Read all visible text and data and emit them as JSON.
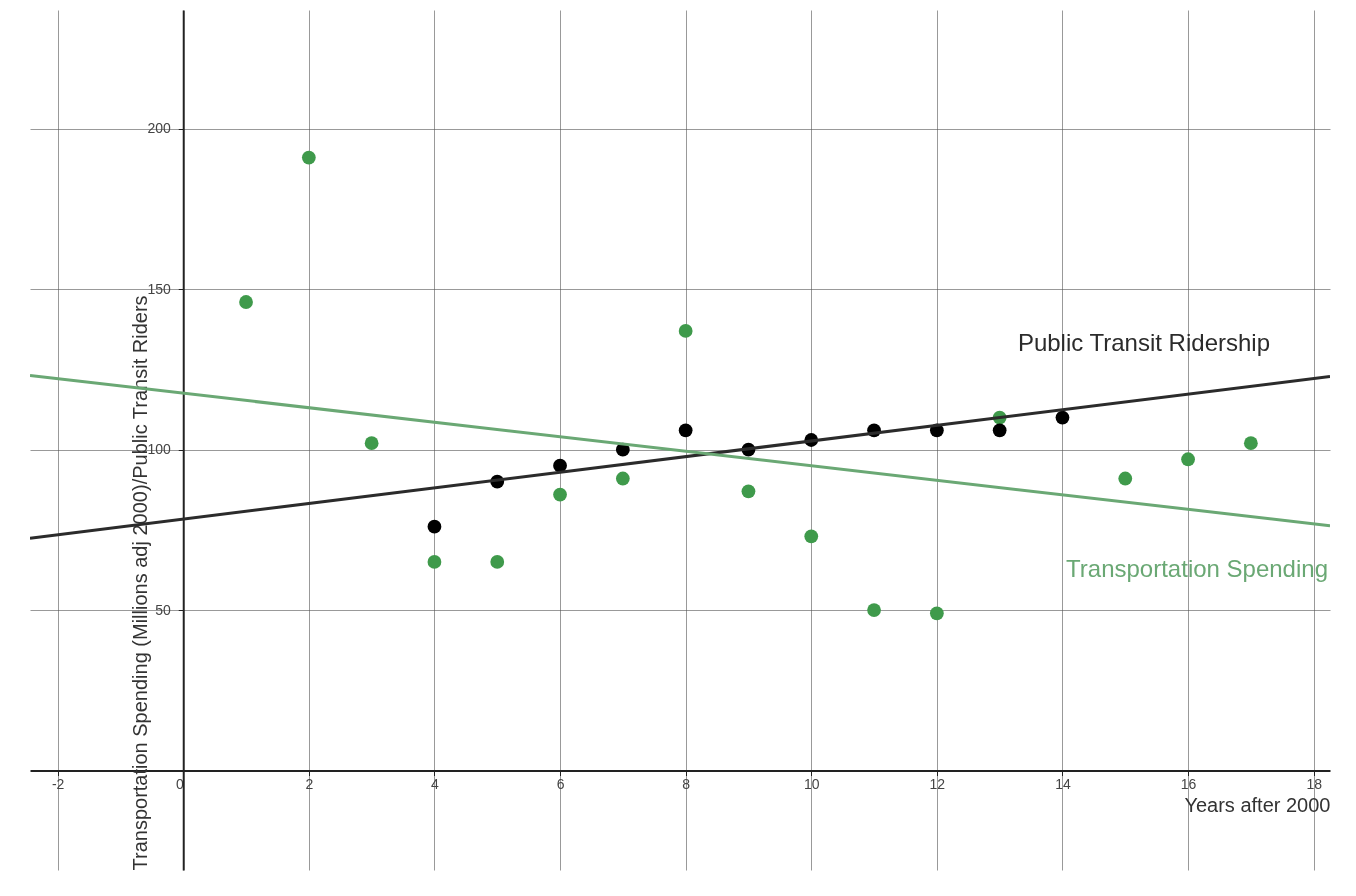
{
  "chart_data": {
    "type": "scatter",
    "xlabel": "Years after 2000",
    "ylabel": "Transportation Spending (Millions adj 2000)/Public Transit Riders",
    "xlim": [
      -2.44,
      18.26
    ],
    "ylim": [
      -31,
      237
    ],
    "xticks": [
      -2,
      0,
      2,
      4,
      6,
      8,
      10,
      12,
      14,
      16,
      18
    ],
    "yticks": [
      50,
      100,
      150,
      200
    ],
    "grid": true,
    "series": [
      {
        "marker": "circle",
        "color": "#3f9a4b",
        "x": [
          1,
          2,
          3,
          4,
          5,
          6,
          7,
          8,
          9,
          10,
          11,
          12,
          13,
          15,
          16,
          17
        ],
        "values": [
          146,
          191,
          102,
          65,
          65,
          86,
          91,
          137,
          87,
          73,
          50,
          49,
          110,
          91,
          97,
          102
        ]
      },
      {
        "marker": "circle",
        "color": "#000000",
        "x": [
          4,
          5,
          6,
          7,
          8,
          9,
          10,
          11,
          12,
          13,
          14
        ],
        "values": [
          76,
          90,
          95,
          100,
          106,
          100,
          103,
          106,
          106,
          106,
          110
        ]
      },
      {
        "type": "line",
        "marker": "none",
        "name": "Public Transit Ridership",
        "color": "#2b2b2b",
        "x": [
          -2.44,
          18.26
        ],
        "values": [
          72.4,
          122.8
        ]
      },
      {
        "type": "line",
        "marker": "none",
        "name": "Transportation Spending",
        "color": "#6aa874",
        "x": [
          -2.44,
          18.26
        ],
        "values": [
          123.1,
          76.3
        ]
      }
    ]
  }
}
